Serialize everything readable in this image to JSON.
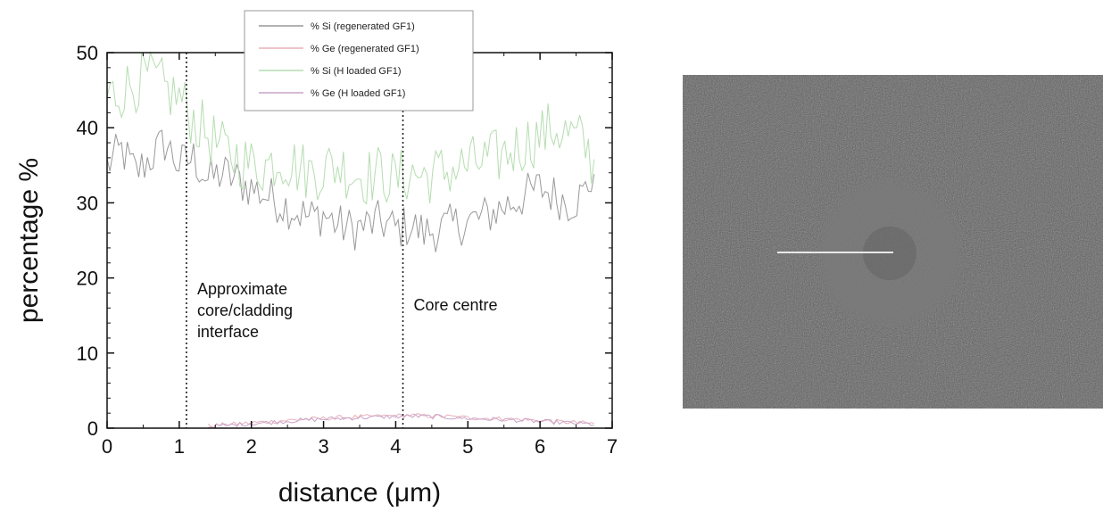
{
  "chart_data": {
    "type": "line",
    "xlabel": "distance (μm)",
    "ylabel": "percentage %",
    "xlim": [
      0,
      7
    ],
    "ylim": [
      0,
      50
    ],
    "xticks": [
      0,
      1,
      2,
      3,
      4,
      5,
      6,
      7
    ],
    "yticks": [
      0,
      10,
      20,
      30,
      40,
      50
    ],
    "grid": false,
    "legend_position": "top-center",
    "series": [
      {
        "name": "% Si (regenerated GF1)",
        "color": "#999999",
        "x": [
          0,
          0.2,
          0.4,
          0.6,
          0.8,
          1.0,
          1.2,
          1.4,
          1.6,
          1.8,
          2.0,
          2.2,
          2.4,
          2.6,
          2.8,
          3.0,
          3.2,
          3.4,
          3.6,
          3.8,
          4.0,
          4.2,
          4.4,
          4.6,
          4.8,
          5.0,
          5.2,
          5.4,
          5.6,
          5.8,
          6.0,
          6.2,
          6.4,
          6.6,
          6.75
        ],
        "y": [
          35,
          37,
          34,
          36,
          38,
          35,
          36,
          33,
          34,
          33,
          32,
          31,
          30,
          29,
          28,
          28.5,
          27,
          26.5,
          27,
          27.5,
          26.5,
          27,
          26,
          26.5,
          27,
          27.5,
          28,
          29,
          30,
          31,
          32,
          31,
          30,
          31,
          34
        ],
        "noise": 3.0
      },
      {
        "name": "% Ge (regenerated GF1)",
        "color": "#e8b0b8",
        "x": [
          1.4,
          2.0,
          2.6,
          3.2,
          3.8,
          4.2,
          4.6,
          5.0,
          5.6,
          6.2,
          6.75
        ],
        "y": [
          0.3,
          0.7,
          1.1,
          1.4,
          1.6,
          1.7,
          1.6,
          1.4,
          1.2,
          0.9,
          0.6
        ],
        "noise": 0.3
      },
      {
        "name": "% Si (H loaded GF1)",
        "color": "#b5ddb0",
        "x": [
          0,
          0.2,
          0.4,
          0.6,
          0.8,
          1.0,
          1.2,
          1.4,
          1.6,
          1.8,
          2.0,
          2.2,
          2.4,
          2.6,
          2.8,
          3.0,
          3.2,
          3.4,
          3.6,
          3.8,
          4.0,
          4.2,
          4.4,
          4.6,
          4.8,
          5.0,
          5.2,
          5.4,
          5.6,
          5.8,
          6.0,
          6.2,
          6.4,
          6.6,
          6.75
        ],
        "y": [
          44,
          45,
          46,
          47,
          45,
          44,
          41,
          39,
          37,
          36,
          35,
          35,
          36,
          35,
          34,
          34.5,
          35,
          34,
          33.5,
          34,
          33,
          34,
          33.5,
          34,
          34.5,
          35,
          35.5,
          36,
          37,
          38,
          39,
          40,
          39,
          38,
          35
        ],
        "noise": 4.0
      },
      {
        "name": "% Ge (H loaded GF1)",
        "color": "#c9a3c8",
        "x": [
          1.4,
          2.0,
          2.6,
          3.2,
          3.8,
          4.2,
          4.6,
          5.0,
          5.6,
          6.2,
          6.75
        ],
        "y": [
          0.2,
          0.6,
          1.0,
          1.3,
          1.5,
          1.6,
          1.5,
          1.3,
          1.1,
          0.8,
          0.5
        ],
        "noise": 0.3
      }
    ],
    "vlines": [
      {
        "x": 1.1,
        "label": [
          "Approximate",
          "core/cladding",
          "interface"
        ]
      },
      {
        "x": 4.1,
        "label": [
          "Core centre"
        ]
      }
    ]
  },
  "legend": [
    {
      "label": "% Si   (regenerated GF1)",
      "color": "#999999"
    },
    {
      "label": "% Ge  (regenerated GF1)",
      "color": "#e8b0b8"
    },
    {
      "label": "% Si    (H loaded GF1)",
      "color": "#b5ddb0"
    },
    {
      "label": "% Ge  (H loaded GF1)",
      "color": "#c9a3c8"
    }
  ],
  "image_panel": {
    "background": "#5a5a5a",
    "ring_color": "#7a7a7a",
    "line_color": "#e8e8e8"
  }
}
